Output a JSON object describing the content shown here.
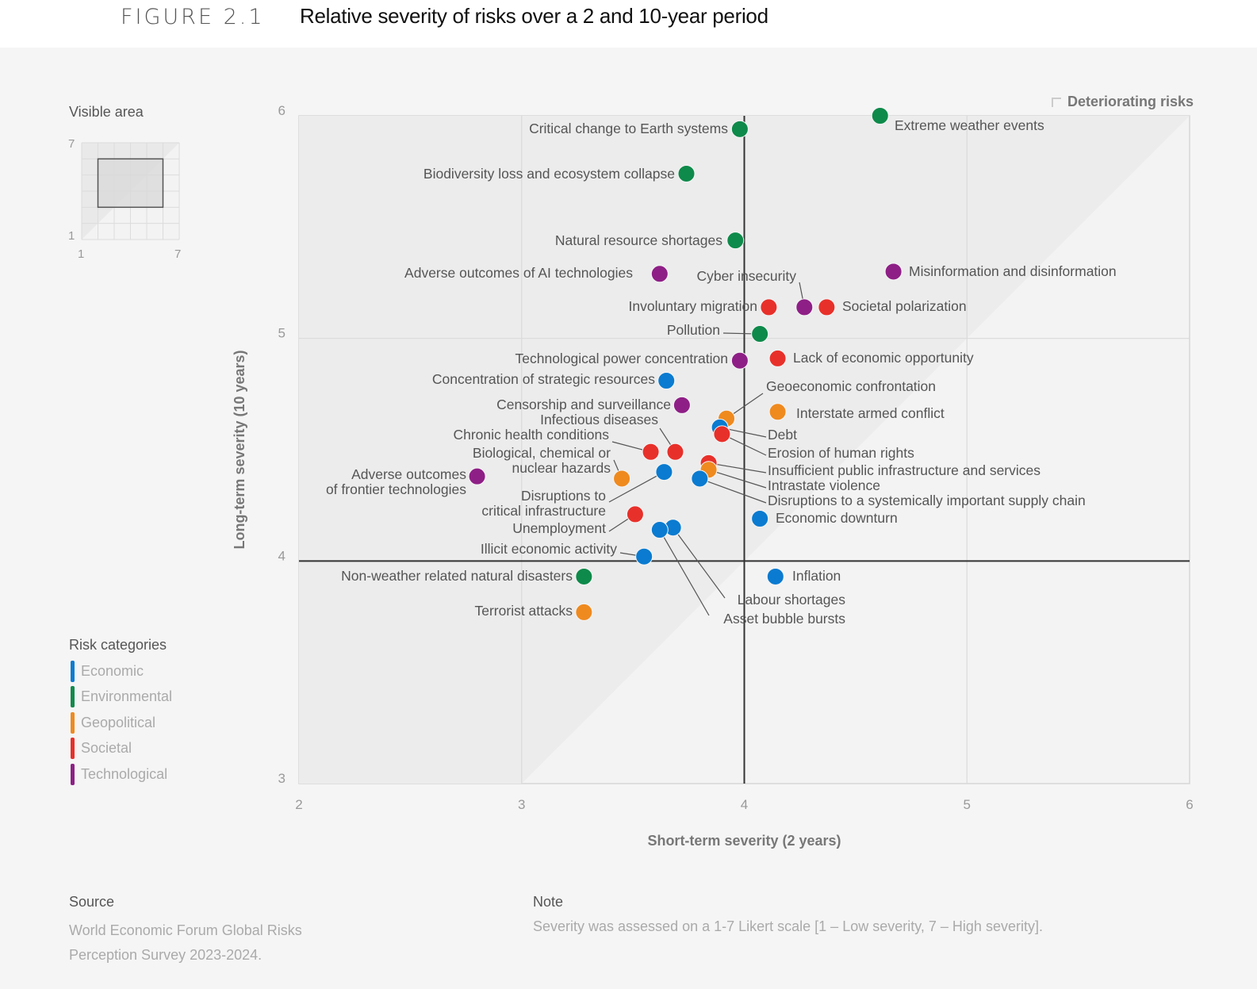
{
  "header": {
    "figure_number": "FIGURE 2.1",
    "title": "Relative severity of risks over a 2 and 10-year period"
  },
  "visible_area": {
    "title": "Visible area",
    "axis_min": "1",
    "axis_max": "7",
    "range_x": [
      2,
      6
    ],
    "range_y": [
      3,
      6
    ]
  },
  "legend": {
    "title": "Risk categories",
    "items": [
      {
        "label": "Economic",
        "color": "#0a7bd0"
      },
      {
        "label": "Environmental",
        "color": "#0e8a4a"
      },
      {
        "label": "Geopolitical",
        "color": "#ef8a1f"
      },
      {
        "label": "Societal",
        "color": "#e8302a"
      },
      {
        "label": "Technological",
        "color": "#8e1f86"
      }
    ]
  },
  "deteriorating_label": "Deteriorating risks",
  "footer": {
    "source_title": "Source",
    "source_text": "World Economic Forum Global Risks Perception Survey 2023-2024.",
    "note_title": "Note",
    "note_text": "Severity was assessed on a 1-7 Likert scale [1 – Low severity, 7 – High severity]."
  },
  "chart_data": {
    "type": "scatter",
    "title": "Relative severity of risks over a 2 and 10-year period",
    "xlabel": "Short-term severity (2 years)",
    "ylabel": "Long-term severity (10 years)",
    "xlim": [
      2,
      6
    ],
    "ylim": [
      3,
      6
    ],
    "xticks": [
      "2",
      "3",
      "4",
      "5",
      "6"
    ],
    "yticks": [
      "3",
      "4",
      "5",
      "6"
    ],
    "reference_lines": {
      "x": 4,
      "y": 4
    },
    "diagonal_shading": "x = y (deteriorating risks above)",
    "grid": true,
    "legend_position": "left",
    "categories": [
      "Economic",
      "Environmental",
      "Geopolitical",
      "Societal",
      "Technological"
    ],
    "points": [
      {
        "label": "Extreme weather events",
        "category": "Environmental",
        "x": 4.61,
        "y": 6.0
      },
      {
        "label": "Critical change to Earth systems",
        "category": "Environmental",
        "x": 3.98,
        "y": 5.94
      },
      {
        "label": "Biodiversity loss and ecosystem collapse",
        "category": "Environmental",
        "x": 3.74,
        "y": 5.74
      },
      {
        "label": "Natural resource shortages",
        "category": "Environmental",
        "x": 3.96,
        "y": 5.44
      },
      {
        "label": "Misinformation and disinformation",
        "category": "Technological",
        "x": 4.67,
        "y": 5.3
      },
      {
        "label": "Adverse outcomes of AI technologies",
        "category": "Technological",
        "x": 3.62,
        "y": 5.29
      },
      {
        "label": "Cyber insecurity",
        "category": "Technological",
        "x": 4.27,
        "y": 5.14
      },
      {
        "label": "Involuntary migration",
        "category": "Societal",
        "x": 4.11,
        "y": 5.14
      },
      {
        "label": "Societal polarization",
        "category": "Societal",
        "x": 4.37,
        "y": 5.14
      },
      {
        "label": "Pollution",
        "category": "Environmental",
        "x": 4.07,
        "y": 5.02
      },
      {
        "label": "Lack of economic opportunity",
        "category": "Societal",
        "x": 4.15,
        "y": 4.91
      },
      {
        "label": "Technological power concentration",
        "category": "Technological",
        "x": 3.98,
        "y": 4.9
      },
      {
        "label": "Concentration of strategic resources",
        "category": "Economic",
        "x": 3.65,
        "y": 4.81
      },
      {
        "label": "Censorship and surveillance",
        "category": "Technological",
        "x": 3.72,
        "y": 4.7
      },
      {
        "label": "Interstate armed conflict",
        "category": "Geopolitical",
        "x": 4.15,
        "y": 4.67
      },
      {
        "label": "Geoeconomic confrontation",
        "category": "Geopolitical",
        "x": 3.92,
        "y": 4.64
      },
      {
        "label": "Debt",
        "category": "Economic",
        "x": 3.89,
        "y": 4.6
      },
      {
        "label": "Erosion of human rights",
        "category": "Societal",
        "x": 3.9,
        "y": 4.57
      },
      {
        "label": "Infectious diseases",
        "category": "Societal",
        "x": 3.69,
        "y": 4.49
      },
      {
        "label": "Chronic health conditions",
        "category": "Societal",
        "x": 3.58,
        "y": 4.49
      },
      {
        "label": "Insufficient public infrastructure and services",
        "category": "Societal",
        "x": 3.84,
        "y": 4.44
      },
      {
        "label": "Intrastate violence",
        "category": "Geopolitical",
        "x": 3.84,
        "y": 4.41
      },
      {
        "label": "Disruptions to critical infrastructure",
        "category": "Economic",
        "x": 3.64,
        "y": 4.4
      },
      {
        "label": "Disruptions to a systemically important supply chain",
        "category": "Economic",
        "x": 3.8,
        "y": 4.37
      },
      {
        "label": "Adverse outcomes of frontier technologies",
        "category": "Technological",
        "x": 2.8,
        "y": 4.38
      },
      {
        "label": "Biological, chemical or nuclear hazards",
        "category": "Geopolitical",
        "x": 3.45,
        "y": 4.37
      },
      {
        "label": "Unemployment",
        "category": "Societal",
        "x": 3.51,
        "y": 4.21
      },
      {
        "label": "Economic downturn",
        "category": "Economic",
        "x": 4.07,
        "y": 4.19
      },
      {
        "label": "Labour shortages",
        "category": "Economic",
        "x": 3.68,
        "y": 4.15
      },
      {
        "label": "Asset bubble bursts",
        "category": "Economic",
        "x": 3.62,
        "y": 4.14
      },
      {
        "label": "Illicit economic activity",
        "category": "Economic",
        "x": 3.55,
        "y": 4.02
      },
      {
        "label": "Inflation",
        "category": "Economic",
        "x": 4.14,
        "y": 3.93
      },
      {
        "label": "Non-weather related natural disasters",
        "category": "Environmental",
        "x": 3.28,
        "y": 3.93
      },
      {
        "label": "Terrorist attacks",
        "category": "Geopolitical",
        "x": 3.28,
        "y": 3.77
      }
    ]
  }
}
